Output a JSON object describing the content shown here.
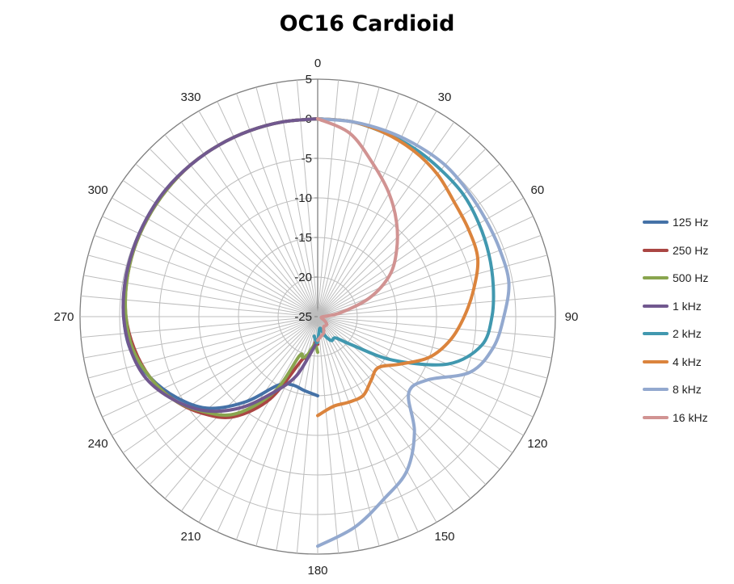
{
  "chart_data": {
    "type": "polar-line",
    "title": "OC16 Cardioid",
    "angle_labels": [
      "0",
      "30",
      "60",
      "90",
      "120",
      "150",
      "180",
      "210",
      "240",
      "270",
      "300",
      "330"
    ],
    "angle_gridline_step_deg": 5,
    "radial_ticks": [
      "5",
      "0",
      "-5",
      "-10",
      "-15",
      "-20",
      "-25"
    ],
    "rlim": [
      -25,
      5
    ],
    "legend_position": "right",
    "series": [
      {
        "name": "125 Hz",
        "color": "#4572A7",
        "angles": [
          180,
          190,
          200,
          210,
          220,
          230,
          240,
          250,
          260,
          270,
          280,
          290,
          300,
          310,
          320,
          330,
          340,
          350,
          360
        ],
        "values": [
          -15,
          -15.5,
          -15.8,
          -15,
          -11,
          -7,
          -4.5,
          -2.5,
          -1,
          -0.5,
          -0.3,
          -0.2,
          -0.1,
          0,
          0,
          0,
          0,
          0,
          0
        ]
      },
      {
        "name": "250 Hz",
        "color": "#AA4643",
        "angles": [
          180,
          185,
          190,
          195,
          200,
          210,
          220,
          230,
          240,
          250,
          260,
          270,
          280,
          290,
          300,
          310,
          320,
          330,
          340,
          350,
          360
        ],
        "values": [
          -21.5,
          -21.8,
          -20.5,
          -19.5,
          -19.2,
          -13,
          -8.5,
          -6,
          -4,
          -2.5,
          -1.5,
          -0.8,
          -0.5,
          -0.3,
          -0.2,
          -0.1,
          0,
          0,
          0,
          0,
          0
        ]
      },
      {
        "name": "500 Hz",
        "color": "#89A54E",
        "angles": [
          180,
          185,
          190,
          195,
          200,
          205,
          210,
          220,
          230,
          240,
          250,
          260,
          270,
          280,
          290,
          300,
          310,
          320,
          330,
          340,
          350,
          360
        ],
        "values": [
          -20.5,
          -21.5,
          -21,
          -20,
          -19.5,
          -19.5,
          -14,
          -9,
          -6.3,
          -4,
          -2.5,
          -1.3,
          -0.8,
          -0.5,
          -0.3,
          -0.2,
          -0.1,
          0,
          0,
          0,
          0,
          0
        ]
      },
      {
        "name": "1 kHz",
        "color": "#71588F",
        "angles": [
          180,
          190,
          200,
          210,
          220,
          230,
          240,
          250,
          260,
          270,
          280,
          290,
          300,
          310,
          320,
          330,
          340,
          350,
          360
        ],
        "values": [
          -22,
          -20.5,
          -17,
          -14,
          -10,
          -6.5,
          -4,
          -2,
          -1,
          -0.5,
          -0.3,
          -0.2,
          -0.1,
          0,
          0,
          0,
          0,
          0,
          0
        ]
      },
      {
        "name": "2 kHz",
        "color": "#4198AF",
        "angles": [
          0,
          10,
          20,
          30,
          40,
          50,
          60,
          70,
          80,
          90,
          100,
          110,
          120,
          130,
          140,
          150,
          160,
          170,
          180,
          185,
          190
        ],
        "values": [
          0,
          0,
          -0.3,
          -0.5,
          -0.8,
          -1,
          -1.5,
          -2,
          -2.5,
          -3,
          -4,
          -7.5,
          -14,
          -19.5,
          -21.5,
          -21.5,
          -22.5,
          -23.5,
          -21.8,
          -22,
          -22.5
        ]
      },
      {
        "name": "4 kHz",
        "color": "#DB843D",
        "angles": [
          0,
          10,
          20,
          30,
          40,
          50,
          60,
          70,
          80,
          90,
          100,
          110,
          120,
          130,
          140,
          150,
          160,
          170,
          180
        ],
        "values": [
          0,
          0,
          -0.3,
          -0.8,
          -1.5,
          -2.5,
          -3,
          -3.5,
          -5,
          -6.5,
          -8,
          -10,
          -13,
          -15,
          -14.5,
          -13.5,
          -13.5,
          -13.5,
          -12.5
        ]
      },
      {
        "name": "8 kHz",
        "color": "#93A9CF",
        "angles": [
          0,
          10,
          20,
          30,
          40,
          50,
          60,
          70,
          80,
          90,
          100,
          110,
          120,
          130,
          140,
          150,
          160,
          170,
          180
        ],
        "values": [
          0,
          0,
          0,
          0,
          0,
          -0.3,
          -0.5,
          -0.5,
          -0.5,
          -1.5,
          -2.5,
          -4.5,
          -9,
          -10,
          -6,
          -2.5,
          -0.5,
          2,
          4
        ]
      },
      {
        "name": "16 kHz",
        "color": "#D19392",
        "angles": [
          0,
          10,
          20,
          30,
          40,
          50,
          60,
          70,
          80,
          90,
          100,
          110,
          120,
          130,
          140,
          150,
          160,
          170,
          180
        ],
        "values": [
          0,
          -1.5,
          -4.5,
          -7,
          -9.5,
          -12,
          -14.5,
          -18,
          -22,
          -24.3,
          -24.5,
          -24.5,
          -24,
          -23.5,
          -23.5,
          -23.5,
          -22.8,
          -22.5,
          -22
        ]
      }
    ]
  }
}
